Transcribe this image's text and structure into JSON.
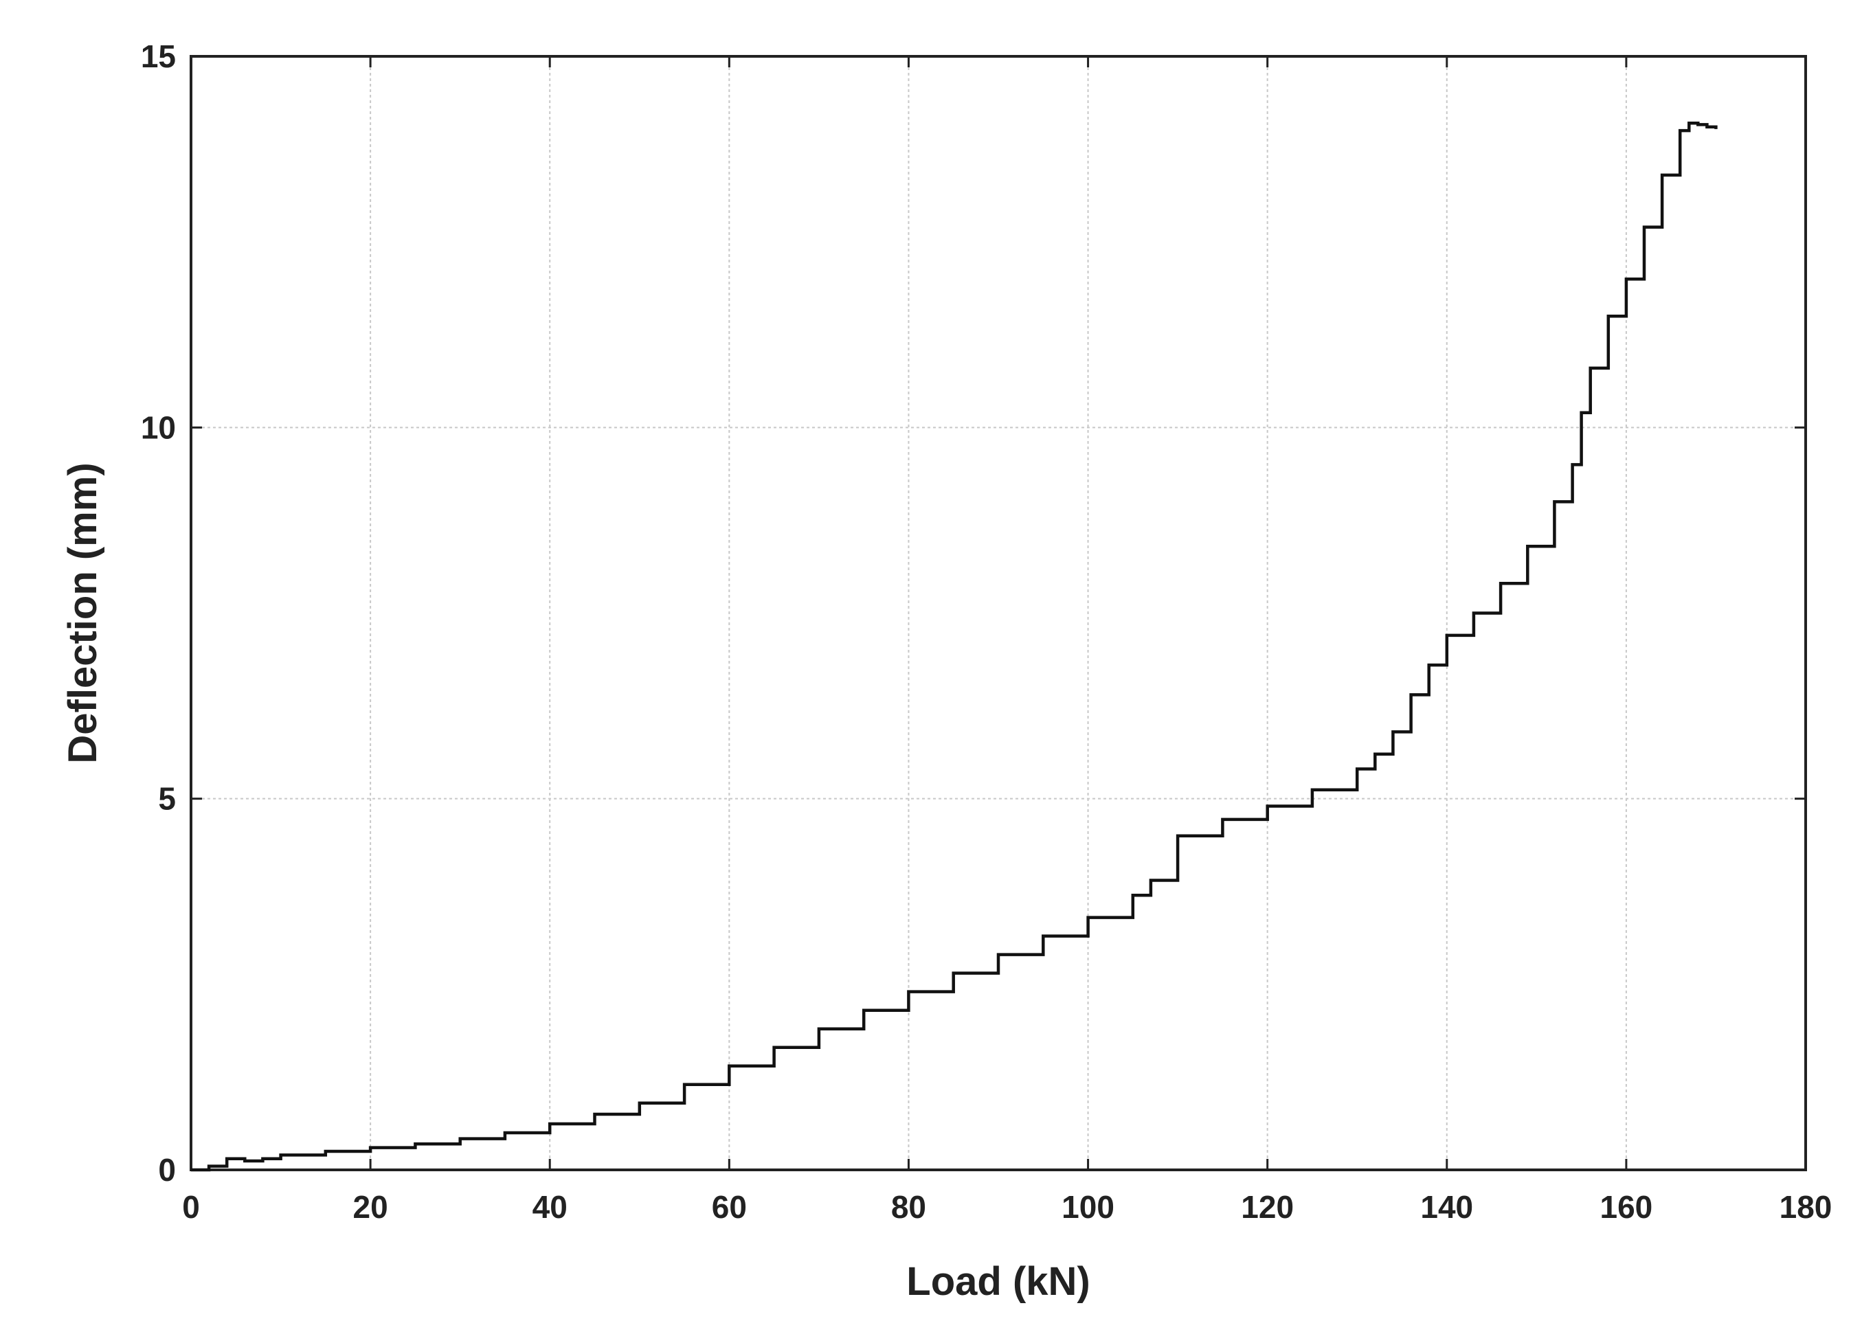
{
  "chart_data": {
    "type": "line",
    "title": "",
    "xlabel": "Load (kN)",
    "ylabel": "Deflection (mm)",
    "xlim": [
      0,
      180
    ],
    "ylim": [
      0,
      15
    ],
    "xticks": [
      0,
      20,
      40,
      60,
      80,
      100,
      120,
      140,
      160,
      180
    ],
    "yticks": [
      0,
      5,
      10,
      15
    ],
    "grid": true,
    "legend": "none",
    "colors": {
      "line": "#111111",
      "grid": "#c8c8c8",
      "axes": "#222222"
    },
    "series": [
      {
        "x": [
          0,
          2,
          4,
          6,
          8,
          10,
          15,
          20,
          25,
          30,
          35,
          40,
          45,
          50,
          55,
          60,
          65,
          70,
          75,
          80,
          85,
          90,
          95,
          100,
          105,
          107,
          110,
          115,
          120,
          125,
          130,
          132,
          134,
          136,
          138,
          140,
          143,
          146,
          149,
          152,
          154,
          155,
          156,
          158,
          160,
          162,
          164,
          166,
          167,
          168,
          169,
          170
        ],
        "y": [
          0,
          0.05,
          0.15,
          0.12,
          0.15,
          0.2,
          0.25,
          0.3,
          0.35,
          0.42,
          0.5,
          0.62,
          0.75,
          0.9,
          1.15,
          1.4,
          1.65,
          1.9,
          2.15,
          2.4,
          2.65,
          2.9,
          3.15,
          3.4,
          3.7,
          3.9,
          4.5,
          4.72,
          4.9,
          5.12,
          5.4,
          5.6,
          5.9,
          6.4,
          6.8,
          7.2,
          7.5,
          7.9,
          8.4,
          9.0,
          9.5,
          10.2,
          10.8,
          11.5,
          12.0,
          12.7,
          13.4,
          14.0,
          14.1,
          14.08,
          14.05,
          14.02
        ]
      }
    ]
  }
}
